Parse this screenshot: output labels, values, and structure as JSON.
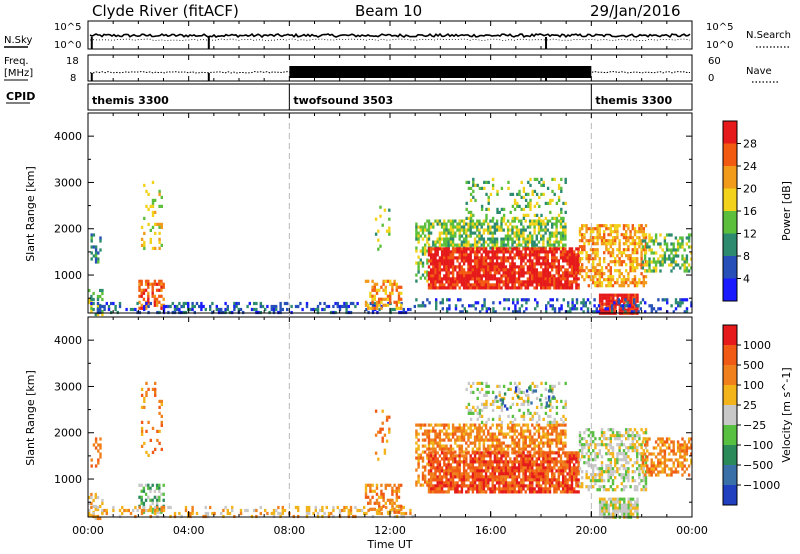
{
  "header": {
    "station": "Clyde River (fitACF)",
    "beam": "Beam 10",
    "date": "29/Jan/2016"
  },
  "nsky_panel": {
    "left_label": "N.Sky",
    "left_top": "10^5",
    "left_bottom": "10^0",
    "right_top": "10^5",
    "right_bottom": "10^0",
    "right_label": "N.Search"
  },
  "freq_panel": {
    "left_label_1": "Freq.",
    "left_label_2": "[MHz]",
    "left_top": "18",
    "left_bottom": "8",
    "right_top": "60",
    "right_bottom": "0",
    "right_label": "Nave"
  },
  "cpid_panel": {
    "label": "CPID",
    "modes": [
      {
        "name": "themis 3300",
        "start_h": 0,
        "end_h": 8
      },
      {
        "name": "twofsound 3503",
        "start_h": 8,
        "end_h": 20
      },
      {
        "name": "themis 3300",
        "start_h": 20,
        "end_h": 24
      }
    ]
  },
  "x_axis": {
    "label": "Time UT",
    "ticks": [
      "00:00",
      "04:00",
      "08:00",
      "12:00",
      "16:00",
      "20:00",
      "00:00"
    ],
    "range_hours": [
      0,
      24
    ]
  },
  "chart_data": [
    {
      "type": "heatmap",
      "name": "power",
      "ylabel": "Slant Range [km]",
      "ylim": [
        180,
        4500
      ],
      "yticks": [
        1000,
        2000,
        3000,
        4000
      ],
      "colorbar": {
        "label": "Power [dB]",
        "tick_labels": [
          "4",
          "8",
          "12",
          "16",
          "20",
          "24",
          "28"
        ],
        "colors": [
          "#1a1aff",
          "#2650b8",
          "#2c8b6e",
          "#5cbf3c",
          "#f2d21a",
          "#f29a1a",
          "#f25a12",
          "#e61a1a"
        ]
      },
      "regions": [
        {
          "t0": 0.0,
          "t1": 0.6,
          "r0": 180,
          "r1": 700,
          "level": 3,
          "density": 0.4
        },
        {
          "t0": 0.1,
          "t1": 0.5,
          "r0": 1300,
          "r1": 1900,
          "level": 2,
          "density": 0.3
        },
        {
          "t0": 2.0,
          "t1": 3.0,
          "r0": 300,
          "r1": 900,
          "level": 6,
          "density": 0.55
        },
        {
          "t0": 2.1,
          "t1": 2.9,
          "r0": 1500,
          "r1": 3100,
          "level": 4,
          "density": 0.15
        },
        {
          "t0": 0.0,
          "t1": 13.0,
          "r0": 180,
          "r1": 420,
          "level": 1,
          "density": 0.35
        },
        {
          "t0": 11.0,
          "t1": 12.4,
          "r0": 300,
          "r1": 900,
          "level": 5,
          "density": 0.5
        },
        {
          "t0": 11.4,
          "t1": 12.0,
          "r0": 1400,
          "r1": 2500,
          "level": 3,
          "density": 0.2
        },
        {
          "t0": 13.0,
          "t1": 13.5,
          "r0": 900,
          "r1": 2200,
          "level": 3,
          "density": 0.45
        },
        {
          "t0": 13.5,
          "t1": 19.0,
          "r0": 1600,
          "r1": 2200,
          "level": 3,
          "density": 0.65
        },
        {
          "t0": 13.5,
          "t1": 19.5,
          "r0": 700,
          "r1": 1600,
          "level": 7,
          "density": 0.85
        },
        {
          "t0": 15.0,
          "t1": 19.0,
          "r0": 2200,
          "r1": 3100,
          "level": 3,
          "density": 0.22
        },
        {
          "t0": 19.5,
          "t1": 22.2,
          "r0": 800,
          "r1": 2100,
          "level": 5,
          "density": 0.55
        },
        {
          "t0": 20.3,
          "t1": 21.8,
          "r0": 180,
          "r1": 600,
          "level": 7,
          "density": 0.9
        },
        {
          "t0": 22.0,
          "t1": 24.0,
          "r0": 1100,
          "r1": 1900,
          "level": 3,
          "density": 0.5
        },
        {
          "t0": 13.0,
          "t1": 24.0,
          "r0": 180,
          "r1": 500,
          "level": 1,
          "density": 0.3
        }
      ]
    },
    {
      "type": "heatmap",
      "name": "velocity",
      "ylabel": "Slant Range [km]",
      "ylim": [
        180,
        4500
      ],
      "yticks": [
        1000,
        2000,
        3000,
        4000
      ],
      "colorbar": {
        "label": "Velocity [m s^-1]",
        "tick_labels": [
          "1000",
          "500",
          "100",
          "25",
          "−25",
          "−100",
          "−500",
          "−1000"
        ],
        "colors": [
          "#2040c0",
          "#3a70a8",
          "#2a8a5a",
          "#58c040",
          "#c8c8c8",
          "#f2b41a",
          "#f0801c",
          "#f05a14",
          "#e61a1a"
        ]
      },
      "regions": [
        {
          "t0": 0.0,
          "t1": 0.6,
          "r0": 180,
          "r1": 700,
          "level": 5,
          "density": 0.35
        },
        {
          "t0": 0.1,
          "t1": 0.5,
          "r0": 1300,
          "r1": 1900,
          "level": 6,
          "density": 0.3
        },
        {
          "t0": 2.0,
          "t1": 3.0,
          "r0": 300,
          "r1": 900,
          "level": 3,
          "density": 0.5
        },
        {
          "t0": 2.1,
          "t1": 2.9,
          "r0": 1500,
          "r1": 3100,
          "level": 6,
          "density": 0.15
        },
        {
          "t0": 0.0,
          "t1": 13.0,
          "r0": 180,
          "r1": 420,
          "level": 5,
          "density": 0.3
        },
        {
          "t0": 11.0,
          "t1": 12.4,
          "r0": 300,
          "r1": 900,
          "level": 6,
          "density": 0.5
        },
        {
          "t0": 11.4,
          "t1": 12.0,
          "r0": 1400,
          "r1": 2500,
          "level": 6,
          "density": 0.2
        },
        {
          "t0": 13.0,
          "t1": 13.5,
          "r0": 900,
          "r1": 2200,
          "level": 6,
          "density": 0.45
        },
        {
          "t0": 13.5,
          "t1": 19.0,
          "r0": 1600,
          "r1": 2200,
          "level": 6,
          "density": 0.65
        },
        {
          "t0": 13.5,
          "t1": 19.5,
          "r0": 700,
          "r1": 1600,
          "level": 7,
          "density": 0.85
        },
        {
          "t0": 15.0,
          "t1": 19.0,
          "r0": 2200,
          "r1": 3100,
          "level": 4,
          "density": 0.22
        },
        {
          "t0": 16.0,
          "t1": 18.5,
          "r0": 2500,
          "r1": 3000,
          "level": 1,
          "density": 0.12
        },
        {
          "t0": 19.5,
          "t1": 22.2,
          "r0": 800,
          "r1": 2100,
          "level": 4,
          "density": 0.5
        },
        {
          "t0": 20.3,
          "t1": 21.8,
          "r0": 180,
          "r1": 600,
          "level": 4,
          "density": 0.8
        },
        {
          "t0": 22.0,
          "t1": 24.0,
          "r0": 1100,
          "r1": 1900,
          "level": 6,
          "density": 0.5
        }
      ]
    }
  ]
}
